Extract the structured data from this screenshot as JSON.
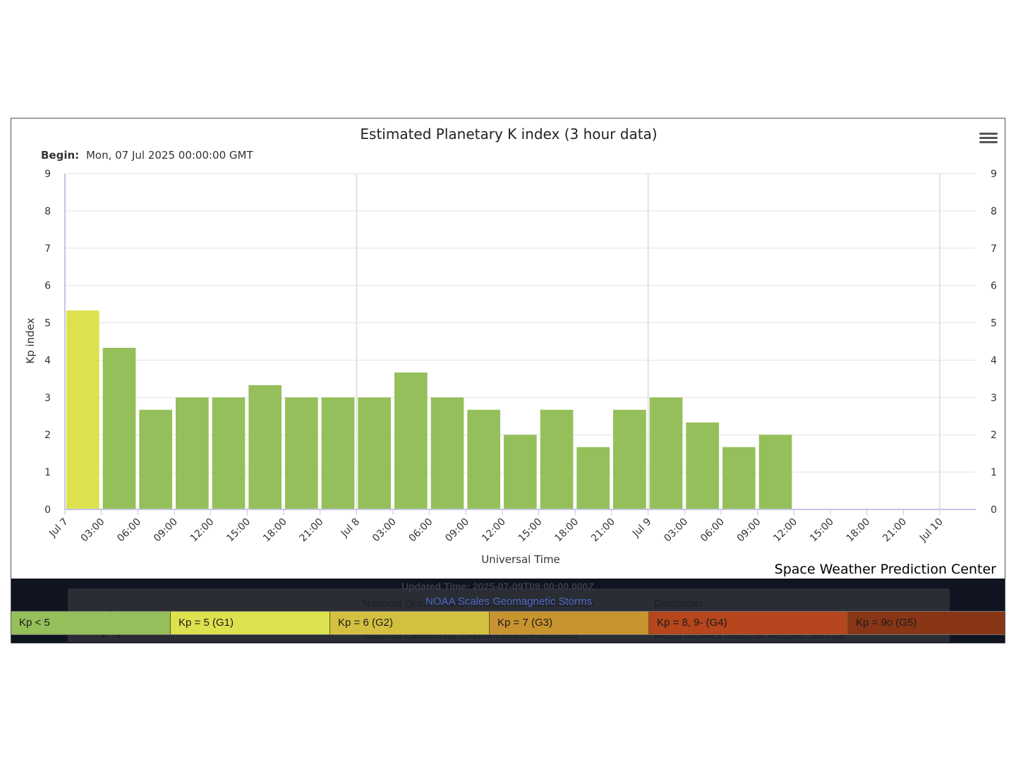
{
  "chart_data": {
    "type": "bar",
    "title": "Estimated Planetary K index (3 hour data)",
    "subtitle_label": "Begin:",
    "subtitle_value": "Mon, 07 Jul 2025 00:00:00 GMT",
    "xlabel": "Universal Time",
    "ylabel": "Kp index",
    "ylim": [
      0,
      9
    ],
    "y_ticks": [
      "0",
      "1",
      "2",
      "3",
      "4",
      "5",
      "6",
      "7",
      "8",
      "9"
    ],
    "x_ticks": [
      "Jul 7",
      "03:00",
      "06:00",
      "09:00",
      "12:00",
      "15:00",
      "18:00",
      "21:00",
      "Jul 8",
      "03:00",
      "06:00",
      "09:00",
      "12:00",
      "15:00",
      "18:00",
      "21:00",
      "Jul 9",
      "03:00",
      "06:00",
      "09:00",
      "12:00",
      "15:00",
      "18:00",
      "21:00",
      "Jul 10"
    ],
    "values": [
      5.33,
      4.33,
      2.67,
      3.0,
      3.0,
      3.33,
      3.0,
      3.0,
      3.0,
      3.67,
      3.0,
      2.67,
      2.0,
      2.67,
      1.67,
      2.67,
      3.0,
      2.33,
      1.67,
      2.0
    ],
    "grid": true,
    "colors": {
      "kp_below_5": "#95bf5a",
      "kp_5": "#dce24e"
    }
  },
  "credit": "Space Weather Prediction Center",
  "footer": {
    "updated_time": "Updated Time: 2025-07-09T09:00:00.000Z",
    "link_1": "National Oceanic and Atmospheric Administration",
    "link_2": "Disclaimer",
    "link_3": "National Centers for Environmental Prediction",
    "link_4": "About NOAA's National Weather Service"
  },
  "scale": {
    "title": "NOAA Scales Geomagnetic Storms",
    "items": [
      {
        "label": "Kp < 5",
        "color": "#95bf5a"
      },
      {
        "label": "Kp = 5 (G1)",
        "color": "#dce24e"
      },
      {
        "label": "Kp = 6 (G2)",
        "color": "#d4c040"
      },
      {
        "label": "Kp = 7 (G3)",
        "color": "#c8942f"
      },
      {
        "label": "Kp = 8, 9- (G4)",
        "color": "#b6461d"
      },
      {
        "label": "Kp = 9o (G5)",
        "color": "#893617"
      }
    ]
  }
}
